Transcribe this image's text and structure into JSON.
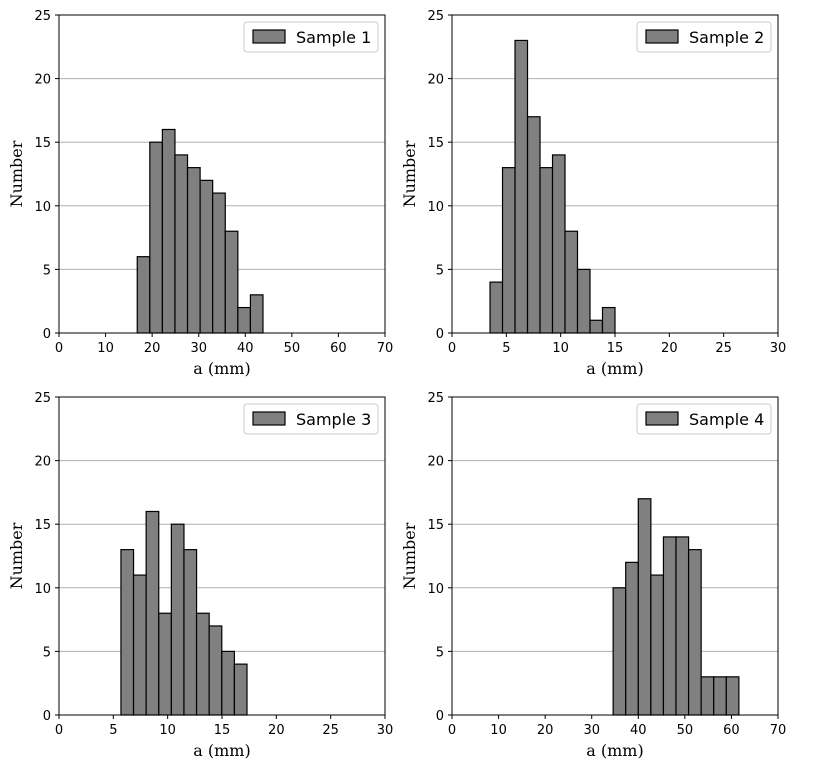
{
  "chart_data": [
    {
      "type": "bar",
      "legend": "Sample 1",
      "legend_position": "top-right",
      "xlabel": "a (mm)",
      "ylabel": "Number",
      "xlim": [
        0,
        70
      ],
      "ylim": [
        0,
        25
      ],
      "xticks": [
        0,
        10,
        20,
        30,
        40,
        50,
        60,
        70
      ],
      "yticks": [
        0,
        5,
        10,
        15,
        20,
        25
      ],
      "grid": "horizontal",
      "bar_color": "#808080",
      "bins": [
        {
          "x0": 16.8,
          "x1": 19.5,
          "value": 6
        },
        {
          "x0": 19.5,
          "x1": 22.2,
          "value": 15
        },
        {
          "x0": 22.2,
          "x1": 24.9,
          "value": 16
        },
        {
          "x0": 24.9,
          "x1": 27.6,
          "value": 14
        },
        {
          "x0": 27.6,
          "x1": 30.3,
          "value": 13
        },
        {
          "x0": 30.3,
          "x1": 33.0,
          "value": 12
        },
        {
          "x0": 33.0,
          "x1": 35.7,
          "value": 11
        },
        {
          "x0": 35.7,
          "x1": 38.4,
          "value": 8
        },
        {
          "x0": 38.4,
          "x1": 41.1,
          "value": 2
        },
        {
          "x0": 41.1,
          "x1": 43.8,
          "value": 3
        }
      ]
    },
    {
      "type": "bar",
      "legend": "Sample 2",
      "legend_position": "top-right",
      "xlabel": "a (mm)",
      "ylabel": "Number",
      "xlim": [
        0,
        30
      ],
      "ylim": [
        0,
        25
      ],
      "xticks": [
        0,
        5,
        10,
        15,
        20,
        25,
        30
      ],
      "yticks": [
        0,
        5,
        10,
        15,
        20,
        25
      ],
      "grid": "horizontal",
      "bar_color": "#808080",
      "bins": [
        {
          "x0": 3.5,
          "x1": 4.65,
          "value": 4
        },
        {
          "x0": 4.65,
          "x1": 5.8,
          "value": 13
        },
        {
          "x0": 5.8,
          "x1": 6.95,
          "value": 23
        },
        {
          "x0": 6.95,
          "x1": 8.1,
          "value": 17
        },
        {
          "x0": 8.1,
          "x1": 9.25,
          "value": 13
        },
        {
          "x0": 9.25,
          "x1": 10.4,
          "value": 14
        },
        {
          "x0": 10.4,
          "x1": 11.55,
          "value": 8
        },
        {
          "x0": 11.55,
          "x1": 12.7,
          "value": 5
        },
        {
          "x0": 12.7,
          "x1": 13.85,
          "value": 1
        },
        {
          "x0": 13.85,
          "x1": 15.0,
          "value": 2
        }
      ]
    },
    {
      "type": "bar",
      "legend": "Sample 3",
      "legend_position": "top-right",
      "xlabel": "a (mm)",
      "ylabel": "Number",
      "xlim": [
        0,
        30
      ],
      "ylim": [
        0,
        25
      ],
      "xticks": [
        0,
        5,
        10,
        15,
        20,
        25,
        30
      ],
      "yticks": [
        0,
        5,
        10,
        15,
        20,
        25
      ],
      "grid": "horizontal",
      "bar_color": "#808080",
      "bins": [
        {
          "x0": 5.7,
          "x1": 6.86,
          "value": 13
        },
        {
          "x0": 6.86,
          "x1": 8.02,
          "value": 11
        },
        {
          "x0": 8.02,
          "x1": 9.18,
          "value": 16
        },
        {
          "x0": 9.18,
          "x1": 10.34,
          "value": 8
        },
        {
          "x0": 10.34,
          "x1": 11.5,
          "value": 15
        },
        {
          "x0": 11.5,
          "x1": 12.66,
          "value": 13
        },
        {
          "x0": 12.66,
          "x1": 13.82,
          "value": 8
        },
        {
          "x0": 13.82,
          "x1": 14.98,
          "value": 7
        },
        {
          "x0": 14.98,
          "x1": 16.14,
          "value": 5
        },
        {
          "x0": 16.14,
          "x1": 17.3,
          "value": 4
        }
      ]
    },
    {
      "type": "bar",
      "legend": "Sample 4",
      "legend_position": "top-right",
      "xlabel": "a (mm)",
      "ylabel": "Number",
      "xlim": [
        0,
        70
      ],
      "ylim": [
        0,
        25
      ],
      "xticks": [
        0,
        10,
        20,
        30,
        40,
        50,
        60,
        70
      ],
      "yticks": [
        0,
        5,
        10,
        15,
        20,
        25
      ],
      "grid": "horizontal",
      "bar_color": "#808080",
      "bins": [
        {
          "x0": 34.6,
          "x1": 37.3,
          "value": 10
        },
        {
          "x0": 37.3,
          "x1": 40.0,
          "value": 12
        },
        {
          "x0": 40.0,
          "x1": 42.7,
          "value": 17
        },
        {
          "x0": 42.7,
          "x1": 45.4,
          "value": 11
        },
        {
          "x0": 45.4,
          "x1": 48.1,
          "value": 14
        },
        {
          "x0": 48.1,
          "x1": 50.8,
          "value": 14
        },
        {
          "x0": 50.8,
          "x1": 53.5,
          "value": 13
        },
        {
          "x0": 53.5,
          "x1": 56.2,
          "value": 3
        },
        {
          "x0": 56.2,
          "x1": 58.9,
          "value": 3
        },
        {
          "x0": 58.9,
          "x1": 61.6,
          "value": 3
        }
      ]
    }
  ]
}
